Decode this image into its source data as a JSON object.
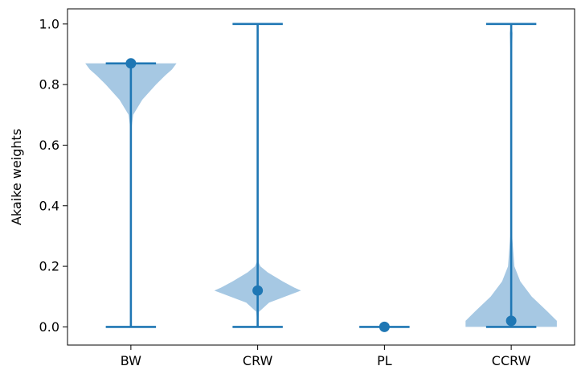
{
  "chart_data": {
    "type": "violin",
    "title": "",
    "xlabel": "",
    "ylabel": "Akaike weights",
    "ylim": [
      -0.06,
      1.05
    ],
    "yticks": [
      0.0,
      0.2,
      0.4,
      0.6,
      0.8,
      1.0
    ],
    "ytick_labels": [
      "0.0",
      "0.2",
      "0.4",
      "0.6",
      "0.8",
      "1.0"
    ],
    "categories": [
      "BW",
      "CRW",
      "PL",
      "CCRW"
    ],
    "grid": false,
    "colors": {
      "body_fill": "#a6c8e3",
      "line": "#1f77b4",
      "marker": "#1f77b4",
      "axis": "#000000"
    },
    "series": [
      {
        "category": "BW",
        "min": 0.0,
        "max": 0.87,
        "marker": 0.87,
        "density": [
          [
            0.0,
            0.0
          ],
          [
            0.02,
            0.015
          ],
          [
            0.1,
            0.005
          ],
          [
            0.3,
            0.0
          ],
          [
            0.55,
            0.002
          ],
          [
            0.65,
            0.008
          ],
          [
            0.7,
            0.05
          ],
          [
            0.75,
            0.25
          ],
          [
            0.8,
            0.55
          ],
          [
            0.83,
            0.75
          ],
          [
            0.85,
            0.9
          ],
          [
            0.87,
            1.0
          ]
        ]
      },
      {
        "category": "CRW",
        "min": 0.0,
        "max": 1.0,
        "marker": 0.12,
        "density": [
          [
            0.0,
            0.0
          ],
          [
            0.05,
            0.03
          ],
          [
            0.08,
            0.25
          ],
          [
            0.1,
            0.6
          ],
          [
            0.12,
            0.95
          ],
          [
            0.13,
            0.8
          ],
          [
            0.15,
            0.55
          ],
          [
            0.18,
            0.22
          ],
          [
            0.2,
            0.06
          ],
          [
            0.22,
            0.0
          ]
        ]
      },
      {
        "category": "PL",
        "min": 0.0,
        "max": 0.0,
        "marker": 0.0,
        "density": []
      },
      {
        "category": "CCRW",
        "min": 0.0,
        "max": 1.0,
        "marker": 0.02,
        "density": [
          [
            0.0,
            1.0
          ],
          [
            0.02,
            1.0
          ],
          [
            0.05,
            0.8
          ],
          [
            0.1,
            0.45
          ],
          [
            0.15,
            0.2
          ],
          [
            0.2,
            0.07
          ],
          [
            0.3,
            0.02
          ],
          [
            0.5,
            0.01
          ],
          [
            0.7,
            0.008
          ],
          [
            0.9,
            0.015
          ],
          [
            0.97,
            0.03
          ],
          [
            1.0,
            0.0
          ]
        ]
      }
    ]
  }
}
